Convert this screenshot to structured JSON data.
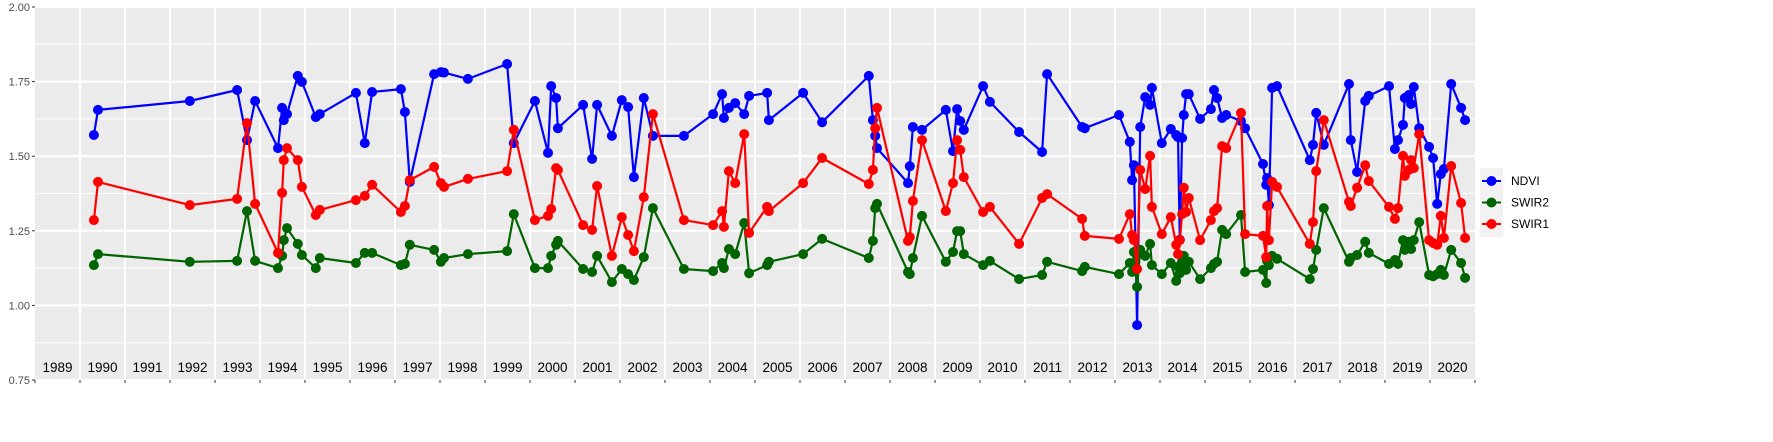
{
  "chart_data": {
    "type": "line",
    "title": "",
    "xlabel": "",
    "ylabel": "",
    "xlim": [
      1989,
      2021
    ],
    "ylim": [
      0.75,
      2.0
    ],
    "y_ticks": [
      "0.75",
      "1.00",
      "1.25",
      "1.50",
      "1.75",
      "2.00"
    ],
    "year_labels": [
      "1989",
      "1990",
      "1991",
      "1992",
      "1993",
      "1994",
      "1995",
      "1996",
      "1997",
      "1998",
      "1999",
      "2000",
      "2001",
      "2002",
      "2003",
      "2004",
      "2005",
      "2006",
      "2007",
      "2008",
      "2009",
      "2010",
      "2011",
      "2012",
      "2013",
      "2014",
      "2015",
      "2016",
      "2017",
      "2018",
      "2019",
      "2020"
    ],
    "grid": true,
    "legend_position": "right",
    "x": [
      1990.31,
      1990.4,
      1992.44,
      1993.49,
      1993.71,
      1993.89,
      1994.4,
      1994.49,
      1994.53,
      1994.6,
      1994.84,
      1994.93,
      1995.24,
      1995.33,
      1996.13,
      1996.33,
      1996.49,
      1997.13,
      1997.22,
      1997.33,
      1997.87,
      1998.02,
      1998.09,
      1998.62,
      1999.49,
      1999.64,
      2000.11,
      2000.4,
      2000.47,
      2000.58,
      2000.62,
      2001.18,
      2001.38,
      2001.49,
      2001.82,
      2002.04,
      2002.18,
      2002.31,
      2002.53,
      2002.73,
      2003.42,
      2004.07,
      2004.27,
      2004.31,
      2004.42,
      2004.56,
      2004.76,
      2004.87,
      2005.27,
      2005.31,
      2006.07,
      2006.49,
      2007.53,
      2007.62,
      2007.67,
      2007.71,
      2008.4,
      2008.44,
      2008.51,
      2008.71,
      2009.24,
      2009.4,
      2009.49,
      2009.56,
      2009.64,
      2010.07,
      2010.22,
      2010.87,
      2011.38,
      2011.49,
      2012.27,
      2012.33,
      2013.09,
      2013.33,
      2013.38,
      2013.42,
      2013.49,
      2013.56,
      2013.67,
      2013.78,
      2013.82,
      2014.04,
      2014.24,
      2014.36,
      2014.4,
      2014.44,
      2014.49,
      2014.53,
      2014.58,
      2014.64,
      2014.89,
      2015.13,
      2015.2,
      2015.27,
      2015.38,
      2015.47,
      2015.8,
      2015.89,
      2016.29,
      2016.36,
      2016.38,
      2016.42,
      2016.49,
      2016.6,
      2017.33,
      2017.4,
      2017.47,
      2017.64,
      2018.2,
      2018.24,
      2018.38,
      2018.56,
      2018.64,
      2019.09,
      2019.22,
      2019.29,
      2019.4,
      2019.44,
      2019.53,
      2019.58,
      2019.64,
      2019.76,
      2019.98,
      2020.07,
      2020.16,
      2020.24,
      2020.31,
      2020.47,
      2020.69,
      2020.78
    ],
    "series": [
      {
        "name": "NDVI",
        "color": "#0000FF",
        "values": [
          1.571,
          1.655,
          1.685,
          1.722,
          1.554,
          1.685,
          1.527,
          1.662,
          1.621,
          1.641,
          1.769,
          1.749,
          1.631,
          1.641,
          1.712,
          1.544,
          1.715,
          1.725,
          1.648,
          1.414,
          1.775,
          1.782,
          1.78,
          1.759,
          1.809,
          1.544,
          1.685,
          1.511,
          1.735,
          1.695,
          1.594,
          1.672,
          1.491,
          1.672,
          1.568,
          1.688,
          1.665,
          1.43,
          1.695,
          1.568,
          1.568,
          1.641,
          1.708,
          1.628,
          1.662,
          1.678,
          1.641,
          1.702,
          1.712,
          1.621,
          1.712,
          1.614,
          1.769,
          1.621,
          1.568,
          1.527,
          1.41,
          1.466,
          1.598,
          1.588,
          1.655,
          1.517,
          1.658,
          1.618,
          1.588,
          1.735,
          1.682,
          1.581,
          1.514,
          1.775,
          1.598,
          1.594,
          1.638,
          1.548,
          1.42,
          1.47,
          0.934,
          1.598,
          1.698,
          1.672,
          1.729,
          1.544,
          1.591,
          1.571,
          1.564,
          1.22,
          1.561,
          1.638,
          1.708,
          1.708,
          1.625,
          1.658,
          1.722,
          1.695,
          1.628,
          1.638,
          1.618,
          1.594,
          1.474,
          1.404,
          1.427,
          1.336,
          1.729,
          1.735,
          1.487,
          1.538,
          1.645,
          1.538,
          1.742,
          1.554,
          1.447,
          1.685,
          1.702,
          1.735,
          1.524,
          1.554,
          1.605,
          1.695,
          1.705,
          1.675,
          1.732,
          1.594,
          1.531,
          1.494,
          1.34,
          1.44,
          1.457,
          1.742,
          1.662,
          1.621
        ]
      },
      {
        "name": "SWIR2",
        "color": "#006400",
        "values": [
          1.135,
          1.172,
          1.146,
          1.149,
          1.316,
          1.149,
          1.125,
          1.166,
          1.219,
          1.259,
          1.206,
          1.169,
          1.125,
          1.159,
          1.142,
          1.176,
          1.176,
          1.135,
          1.139,
          1.203,
          1.186,
          1.146,
          1.159,
          1.172,
          1.182,
          1.306,
          1.125,
          1.125,
          1.166,
          1.203,
          1.216,
          1.122,
          1.112,
          1.166,
          1.078,
          1.122,
          1.105,
          1.085,
          1.162,
          1.326,
          1.122,
          1.115,
          1.142,
          1.125,
          1.189,
          1.172,
          1.276,
          1.108,
          1.135,
          1.146,
          1.172,
          1.223,
          1.159,
          1.216,
          1.326,
          1.34,
          1.112,
          1.105,
          1.159,
          1.3,
          1.146,
          1.179,
          1.249,
          1.249,
          1.172,
          1.135,
          1.149,
          1.088,
          1.102,
          1.146,
          1.115,
          1.129,
          1.105,
          1.142,
          1.112,
          1.179,
          1.062,
          1.186,
          1.166,
          1.206,
          1.135,
          1.105,
          1.142,
          1.082,
          1.129,
          1.108,
          1.146,
          1.166,
          1.119,
          1.146,
          1.088,
          1.125,
          1.139,
          1.146,
          1.253,
          1.239,
          1.303,
          1.112,
          1.119,
          1.075,
          1.149,
          1.135,
          1.166,
          1.156,
          1.088,
          1.122,
          1.186,
          1.326,
          1.146,
          1.159,
          1.169,
          1.213,
          1.176,
          1.139,
          1.152,
          1.139,
          1.219,
          1.186,
          1.213,
          1.189,
          1.219,
          1.279,
          1.102,
          1.098,
          1.105,
          1.119,
          1.102,
          1.186,
          1.142,
          1.092
        ]
      },
      {
        "name": "SWIR1",
        "color": "#FF0000",
        "values": [
          1.286,
          1.414,
          1.336,
          1.357,
          1.611,
          1.34,
          1.176,
          1.377,
          1.487,
          1.527,
          1.487,
          1.397,
          1.303,
          1.32,
          1.353,
          1.367,
          1.404,
          1.313,
          1.333,
          1.42,
          1.464,
          1.41,
          1.397,
          1.424,
          1.45,
          1.588,
          1.286,
          1.3,
          1.323,
          1.46,
          1.454,
          1.269,
          1.253,
          1.4,
          1.166,
          1.296,
          1.236,
          1.182,
          1.363,
          1.641,
          1.286,
          1.269,
          1.316,
          1.263,
          1.45,
          1.41,
          1.574,
          1.243,
          1.33,
          1.316,
          1.41,
          1.494,
          1.407,
          1.454,
          1.594,
          1.662,
          1.216,
          1.229,
          1.35,
          1.554,
          1.316,
          1.41,
          1.554,
          1.521,
          1.43,
          1.313,
          1.33,
          1.206,
          1.36,
          1.373,
          1.29,
          1.233,
          1.223,
          1.306,
          1.236,
          1.219,
          1.122,
          1.454,
          1.39,
          1.501,
          1.33,
          1.239,
          1.296,
          1.203,
          1.172,
          1.219,
          1.306,
          1.394,
          1.313,
          1.36,
          1.219,
          1.286,
          1.316,
          1.326,
          1.534,
          1.527,
          1.645,
          1.239,
          1.233,
          1.162,
          1.333,
          1.219,
          1.414,
          1.397,
          1.206,
          1.279,
          1.45,
          1.621,
          1.347,
          1.333,
          1.394,
          1.47,
          1.417,
          1.33,
          1.29,
          1.326,
          1.501,
          1.434,
          1.454,
          1.487,
          1.46,
          1.574,
          1.219,
          1.209,
          1.203,
          1.3,
          1.226,
          1.467,
          1.343,
          1.226
        ]
      }
    ],
    "legend": [
      "NDVI",
      "SWIR2",
      "SWIR1"
    ]
  }
}
